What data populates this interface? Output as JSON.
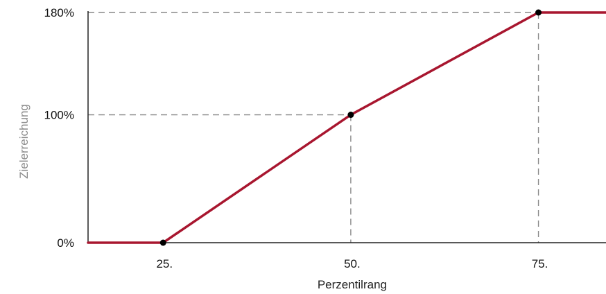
{
  "chart_data": {
    "type": "line",
    "xlabel": "Perzentilrang",
    "ylabel": "Zielerreichung",
    "x_ticks": [
      25,
      50,
      75
    ],
    "x_tick_labels": [
      "25.",
      "50.",
      "75."
    ],
    "y_ticks": [
      0,
      100,
      180
    ],
    "y_tick_labels": [
      "0%",
      "100%",
      "180%"
    ],
    "xlim": [
      15,
      84
    ],
    "ylim": [
      0,
      180
    ],
    "series": [
      {
        "x": [
          15,
          25,
          50,
          75,
          84
        ],
        "y": [
          0,
          0,
          100,
          180,
          180
        ]
      }
    ],
    "markers": [
      {
        "x": 25,
        "y": 0
      },
      {
        "x": 50,
        "y": 100
      },
      {
        "x": 75,
        "y": 180
      }
    ],
    "guides": [
      {
        "x": 50,
        "y": 100
      },
      {
        "x": 75,
        "y": 180
      }
    ],
    "grid": false,
    "legend": "none"
  },
  "colors": {
    "line": "#a8162f",
    "marker": "#000000",
    "guide": "#888888",
    "axis": "#222222"
  }
}
